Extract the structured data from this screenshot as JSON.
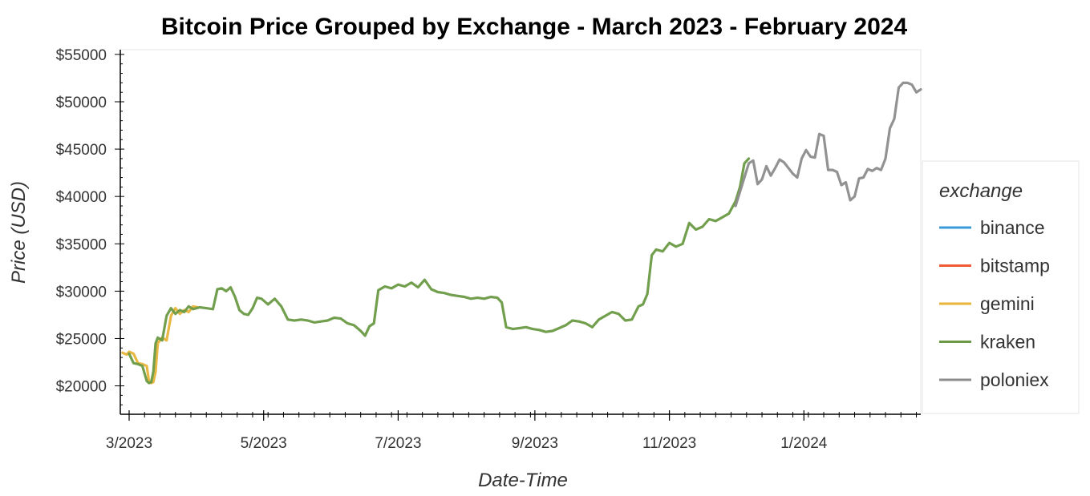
{
  "chart_data": {
    "type": "line",
    "title": "Bitcoin Price Grouped by Exchange - March 2023 - February 2024",
    "xlabel": "Date-Time",
    "ylabel": "Price (USD)",
    "ylim": [
      17000,
      55500
    ],
    "xlim": [
      "2023-02-25",
      "2024-02-23"
    ],
    "y_ticks": [
      "$20000",
      "$25000",
      "$30000",
      "$35000",
      "$40000",
      "$45000",
      "$50000",
      "$55000"
    ],
    "y_tick_values": [
      20000,
      25000,
      30000,
      35000,
      40000,
      45000,
      50000,
      55000
    ],
    "x_ticks": [
      "3/2023",
      "5/2023",
      "7/2023",
      "9/2023",
      "11/2023",
      "1/2024"
    ],
    "x_tick_values": [
      "2023-03-01",
      "2023-05-01",
      "2023-07-01",
      "2023-09-01",
      "2023-11-01",
      "2024-01-01"
    ],
    "legend": {
      "title": "exchange",
      "position": "right"
    },
    "grid": false,
    "colors": {
      "binance": "#3a9ad9",
      "bitstamp": "#f05a35",
      "gemini": "#e8b43a",
      "kraken": "#6a9a45",
      "poloniex": "#8c8c8c"
    },
    "series": [
      {
        "name": "binance",
        "x": [],
        "values": []
      },
      {
        "name": "bitstamp",
        "x": [],
        "values": []
      },
      {
        "name": "gemini",
        "x": [
          "2023-02-26",
          "2023-02-28",
          "2023-03-01",
          "2023-03-03",
          "2023-03-05",
          "2023-03-07",
          "2023-03-09",
          "2023-03-10",
          "2023-03-11",
          "2023-03-12",
          "2023-03-13",
          "2023-03-14",
          "2023-03-16",
          "2023-03-18",
          "2023-03-20",
          "2023-03-22",
          "2023-03-24",
          "2023-03-26",
          "2023-03-28",
          "2023-03-30",
          "2023-04-01"
        ],
        "values": [
          23500,
          23300,
          23600,
          23400,
          22400,
          22300,
          22100,
          20500,
          20300,
          20400,
          21500,
          24500,
          25100,
          24800,
          27400,
          28200,
          27600,
          28000,
          27800,
          28400,
          28300
        ]
      },
      {
        "name": "kraken",
        "x": [
          "2023-03-01",
          "2023-03-03",
          "2023-03-05",
          "2023-03-07",
          "2023-03-09",
          "2023-03-10",
          "2023-03-11",
          "2023-03-12",
          "2023-03-13",
          "2023-03-14",
          "2023-03-16",
          "2023-03-18",
          "2023-03-20",
          "2023-03-22",
          "2023-03-24",
          "2023-03-26",
          "2023-03-28",
          "2023-03-30",
          "2023-04-02",
          "2023-04-05",
          "2023-04-08",
          "2023-04-10",
          "2023-04-12",
          "2023-04-14",
          "2023-04-16",
          "2023-04-18",
          "2023-04-20",
          "2023-04-22",
          "2023-04-24",
          "2023-04-26",
          "2023-04-28",
          "2023-04-30",
          "2023-05-03",
          "2023-05-06",
          "2023-05-09",
          "2023-05-12",
          "2023-05-15",
          "2023-05-18",
          "2023-05-21",
          "2023-05-24",
          "2023-05-27",
          "2023-05-30",
          "2023-06-02",
          "2023-06-05",
          "2023-06-08",
          "2023-06-11",
          "2023-06-14",
          "2023-06-16",
          "2023-06-18",
          "2023-06-20",
          "2023-06-22",
          "2023-06-25",
          "2023-06-28",
          "2023-07-01",
          "2023-07-04",
          "2023-07-07",
          "2023-07-10",
          "2023-07-13",
          "2023-07-16",
          "2023-07-19",
          "2023-07-22",
          "2023-07-25",
          "2023-07-28",
          "2023-07-31",
          "2023-08-03",
          "2023-08-06",
          "2023-08-09",
          "2023-08-12",
          "2023-08-15",
          "2023-08-17",
          "2023-08-19",
          "2023-08-22",
          "2023-08-25",
          "2023-08-28",
          "2023-08-31",
          "2023-09-03",
          "2023-09-06",
          "2023-09-09",
          "2023-09-12",
          "2023-09-15",
          "2023-09-18",
          "2023-09-21",
          "2023-09-24",
          "2023-09-27",
          "2023-09-30",
          "2023-10-03",
          "2023-10-06",
          "2023-10-09",
          "2023-10-12",
          "2023-10-15",
          "2023-10-18",
          "2023-10-20",
          "2023-10-22",
          "2023-10-24",
          "2023-10-26",
          "2023-10-29",
          "2023-11-01",
          "2023-11-04",
          "2023-11-07",
          "2023-11-10",
          "2023-11-13",
          "2023-11-16",
          "2023-11-19",
          "2023-11-22",
          "2023-11-25",
          "2023-11-28",
          "2023-12-01",
          "2023-12-03",
          "2023-12-05",
          "2023-12-07"
        ],
        "values": [
          23400,
          22400,
          22300,
          22100,
          20500,
          20300,
          20400,
          21500,
          24500,
          25100,
          24800,
          27400,
          28200,
          27600,
          28000,
          27800,
          28400,
          28100,
          28300,
          28200,
          28100,
          30200,
          30300,
          30000,
          30400,
          29400,
          28000,
          27600,
          27500,
          28200,
          29300,
          29200,
          28600,
          29200,
          28400,
          27000,
          26900,
          27000,
          26900,
          26700,
          26800,
          26900,
          27200,
          27100,
          26600,
          26400,
          25800,
          25300,
          26300,
          26600,
          30100,
          30500,
          30300,
          30700,
          30500,
          30900,
          30400,
          31200,
          30200,
          29900,
          29800,
          29600,
          29500,
          29400,
          29200,
          29300,
          29200,
          29400,
          29300,
          28800,
          26200,
          26000,
          26100,
          26200,
          26000,
          25900,
          25700,
          25800,
          26100,
          26400,
          26900,
          26800,
          26600,
          26200,
          27000,
          27400,
          27800,
          27600,
          26900,
          27000,
          28400,
          28600,
          29700,
          33800,
          34400,
          34200,
          35100,
          34700,
          35000,
          37200,
          36500,
          36800,
          37600,
          37400,
          37800,
          38200,
          39500,
          41000,
          43500,
          44000
        ]
      },
      {
        "name": "poloniex",
        "x": [
          "2023-12-01",
          "2023-12-03",
          "2023-12-05",
          "2023-12-07",
          "2023-12-09",
          "2023-12-11",
          "2023-12-13",
          "2023-12-15",
          "2023-12-17",
          "2023-12-19",
          "2023-12-21",
          "2023-12-23",
          "2023-12-25",
          "2023-12-27",
          "2023-12-29",
          "2023-12-31",
          "2024-01-02",
          "2024-01-04",
          "2024-01-06",
          "2024-01-08",
          "2024-01-10",
          "2024-01-12",
          "2024-01-14",
          "2024-01-16",
          "2024-01-18",
          "2024-01-20",
          "2024-01-22",
          "2024-01-24",
          "2024-01-26",
          "2024-01-28",
          "2024-01-30",
          "2024-02-01",
          "2024-02-03",
          "2024-02-05",
          "2024-02-07",
          "2024-02-09",
          "2024-02-11",
          "2024-02-13",
          "2024-02-15",
          "2024-02-17",
          "2024-02-19",
          "2024-02-21",
          "2024-02-23"
        ],
        "values": [
          39000,
          40500,
          42000,
          43500,
          43800,
          41300,
          41800,
          43200,
          42200,
          43000,
          43900,
          43600,
          43000,
          42400,
          42000,
          44000,
          44900,
          44200,
          44100,
          46600,
          46400,
          42800,
          42800,
          42600,
          41200,
          41500,
          39600,
          40000,
          41900,
          42000,
          42900,
          42700,
          43000,
          42800,
          44000,
          47200,
          48200,
          51500,
          52000,
          52000,
          51800,
          51000,
          51300
        ]
      }
    ]
  }
}
